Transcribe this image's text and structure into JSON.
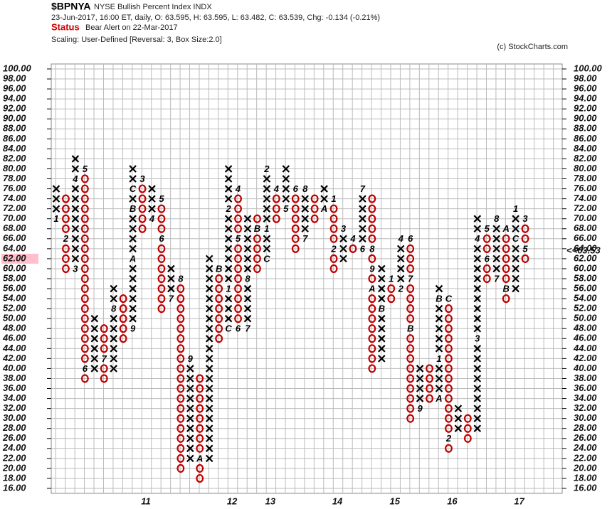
{
  "chart_data": {
    "type": "point_and_figure",
    "symbol": "$BPNYA",
    "name": "NYSE Bullish Percent Index  INDX",
    "quote": "23-Jun-2017, 16:00 ET, daily, O: 63.595, H: 63.595, L: 63.482, C: 63.539, Chg: -0.134 (-0.21%)",
    "status_label": "Status",
    "status": "Bear Alert on 22-Mar-2017",
    "scaling": "Scaling: User-Defined [Reversal: 3, Box Size:2.0]",
    "copyright": "(c) StockCharts.com",
    "box_size": 2,
    "x_color": "#000000",
    "o_color": "#c00000",
    "ylim": [
      16,
      100
    ],
    "yticks": [
      {
        "value": 100,
        "label": "100.00"
      },
      {
        "value": 98,
        "label": "98.00"
      },
      {
        "value": 96,
        "label": "96.00"
      },
      {
        "value": 94,
        "label": "94.00"
      },
      {
        "value": 92,
        "label": "92.00"
      },
      {
        "value": 90,
        "label": "90.00"
      },
      {
        "value": 88,
        "label": "88.00"
      },
      {
        "value": 86,
        "label": "86.00"
      },
      {
        "value": 84,
        "label": "84.00"
      },
      {
        "value": 82,
        "label": "82.00"
      },
      {
        "value": 80,
        "label": "80.00"
      },
      {
        "value": 78,
        "label": "78.00"
      },
      {
        "value": 76,
        "label": "76.00"
      },
      {
        "value": 74,
        "label": "74.00"
      },
      {
        "value": 72,
        "label": "72.00"
      },
      {
        "value": 70,
        "label": "70.00"
      },
      {
        "value": 68,
        "label": "68.00"
      },
      {
        "value": 66,
        "label": "66.00"
      },
      {
        "value": 64,
        "label": "64.00"
      },
      {
        "value": 62,
        "label": "62.00"
      },
      {
        "value": 60,
        "label": "60.00"
      },
      {
        "value": 58,
        "label": "58.00"
      },
      {
        "value": 56,
        "label": "56.00"
      },
      {
        "value": 54,
        "label": "54.00"
      },
      {
        "value": 52,
        "label": "52.00"
      },
      {
        "value": 50,
        "label": "50.00"
      },
      {
        "value": 48,
        "label": "48.00"
      },
      {
        "value": 46,
        "label": "46.00"
      },
      {
        "value": 44,
        "label": "44.00"
      },
      {
        "value": 42,
        "label": "42.00"
      },
      {
        "value": 40,
        "label": "40.00"
      },
      {
        "value": 38,
        "label": "38.00"
      },
      {
        "value": 36,
        "label": "36.00"
      },
      {
        "value": 34,
        "label": "34.00"
      },
      {
        "value": 32,
        "label": "32.00"
      },
      {
        "value": 30,
        "label": "30.00"
      },
      {
        "value": 28,
        "label": "28.00"
      },
      {
        "value": 26,
        "label": "26.00"
      },
      {
        "value": 24,
        "label": "24.00"
      },
      {
        "value": 22,
        "label": "22.00"
      },
      {
        "value": 20,
        "label": "20.00"
      },
      {
        "value": 18,
        "label": "18.00"
      },
      {
        "value": 16,
        "label": "16.00"
      }
    ],
    "highlight_tick": 62,
    "last_price": {
      "value": 63.53,
      "label": "<<63.53"
    },
    "grid": true,
    "columns": [
      {
        "type": "X",
        "from": 70,
        "to": 76,
        "months": [
          {
            "label": "1",
            "value": 70
          }
        ]
      },
      {
        "type": "O",
        "from": 60,
        "to": 74,
        "months": [
          {
            "label": "2",
            "value": 66
          }
        ]
      },
      {
        "type": "X",
        "from": 60,
        "to": 82,
        "months": [
          {
            "label": "3",
            "value": 60
          },
          {
            "label": "4",
            "value": 78
          }
        ]
      },
      {
        "type": "O",
        "from": 38,
        "to": 80,
        "months": [
          {
            "label": "5",
            "value": 80
          },
          {
            "label": "6",
            "value": 40
          }
        ]
      },
      {
        "type": "X",
        "from": 40,
        "to": 50,
        "months": []
      },
      {
        "type": "O",
        "from": 38,
        "to": 48,
        "months": [
          {
            "label": "7",
            "value": 42
          }
        ]
      },
      {
        "type": "X",
        "from": 40,
        "to": 56,
        "months": [
          {
            "label": "8",
            "value": 52
          }
        ]
      },
      {
        "type": "O",
        "from": 46,
        "to": 54,
        "months": []
      },
      {
        "type": "X",
        "from": 48,
        "to": 80,
        "months": [
          {
            "label": "9",
            "value": 48
          },
          {
            "label": "A",
            "value": 62
          },
          {
            "label": "B",
            "value": 72
          },
          {
            "label": "C",
            "value": 76
          }
        ]
      },
      {
        "type": "O",
        "from": 68,
        "to": 78,
        "months": [
          {
            "label": "3",
            "value": 78
          }
        ]
      },
      {
        "type": "X",
        "from": 70,
        "to": 76,
        "months": [
          {
            "label": "4",
            "value": 70
          }
        ]
      },
      {
        "type": "O",
        "from": 52,
        "to": 74,
        "months": [
          {
            "label": "5",
            "value": 74
          },
          {
            "label": "6",
            "value": 66
          }
        ]
      },
      {
        "type": "X",
        "from": 54,
        "to": 60,
        "months": [
          {
            "label": "7",
            "value": 54
          }
        ]
      },
      {
        "type": "O",
        "from": 20,
        "to": 58,
        "months": [
          {
            "label": "8",
            "value": 58
          }
        ]
      },
      {
        "type": "X",
        "from": 22,
        "to": 42,
        "months": [
          {
            "label": "9",
            "value": 42
          }
        ]
      },
      {
        "type": "O",
        "from": 18,
        "to": 38,
        "months": [
          {
            "label": "A",
            "value": 22
          }
        ]
      },
      {
        "type": "X",
        "from": 22,
        "to": 62,
        "months": []
      },
      {
        "type": "O",
        "from": 46,
        "to": 60,
        "months": [
          {
            "label": "B",
            "value": 60
          }
        ]
      },
      {
        "type": "X",
        "from": 48,
        "to": 80,
        "months": [
          {
            "label": "C",
            "value": 48
          },
          {
            "label": "1",
            "value": 56
          },
          {
            "label": "2",
            "value": 72
          }
        ]
      },
      {
        "type": "O",
        "from": 48,
        "to": 76,
        "months": [
          {
            "label": "4",
            "value": 76
          },
          {
            "label": "5",
            "value": 66
          },
          {
            "label": "6",
            "value": 48
          }
        ]
      },
      {
        "type": "X",
        "from": 48,
        "to": 70,
        "months": [
          {
            "label": "7",
            "value": 48
          },
          {
            "label": "8",
            "value": 58
          }
        ]
      },
      {
        "type": "O",
        "from": 60,
        "to": 70,
        "months": [
          {
            "label": "B",
            "value": 68
          }
        ]
      },
      {
        "type": "X",
        "from": 62,
        "to": 80,
        "months": [
          {
            "label": "C",
            "value": 62
          },
          {
            "label": "1",
            "value": 68
          },
          {
            "label": "2",
            "value": 80
          }
        ]
      },
      {
        "type": "O",
        "from": 70,
        "to": 76,
        "months": [
          {
            "label": "4",
            "value": 76
          }
        ]
      },
      {
        "type": "X",
        "from": 72,
        "to": 80,
        "months": [
          {
            "label": "5",
            "value": 72
          }
        ]
      },
      {
        "type": "O",
        "from": 64,
        "to": 76,
        "months": [
          {
            "label": "6",
            "value": 76
          }
        ]
      },
      {
        "type": "X",
        "from": 66,
        "to": 76,
        "months": [
          {
            "label": "7",
            "value": 66
          },
          {
            "label": "8",
            "value": 76
          }
        ]
      },
      {
        "type": "O",
        "from": 70,
        "to": 74,
        "months": []
      },
      {
        "type": "X",
        "from": 72,
        "to": 76,
        "months": [
          {
            "label": "A",
            "value": 72
          }
        ]
      },
      {
        "type": "O",
        "from": 60,
        "to": 74,
        "months": [
          {
            "label": "1",
            "value": 74
          },
          {
            "label": "2",
            "value": 64
          }
        ]
      },
      {
        "type": "X",
        "from": 62,
        "to": 68,
        "months": [
          {
            "label": "3",
            "value": 68
          }
        ]
      },
      {
        "type": "O",
        "from": 64,
        "to": 66,
        "months": [
          {
            "label": "4",
            "value": 66
          }
        ]
      },
      {
        "type": "X",
        "from": 64,
        "to": 76,
        "months": [
          {
            "label": "6",
            "value": 64
          },
          {
            "label": "7",
            "value": 76
          }
        ]
      },
      {
        "type": "O",
        "from": 40,
        "to": 74,
        "months": [
          {
            "label": "8",
            "value": 64
          },
          {
            "label": "9",
            "value": 60
          },
          {
            "label": "A",
            "value": 56
          }
        ]
      },
      {
        "type": "X",
        "from": 42,
        "to": 60,
        "months": [
          {
            "label": "B",
            "value": 52
          }
        ]
      },
      {
        "type": "O",
        "from": 54,
        "to": 58,
        "months": [
          {
            "label": "1",
            "value": 58
          }
        ]
      },
      {
        "type": "X",
        "from": 56,
        "to": 66,
        "months": [
          {
            "label": "2",
            "value": 56
          },
          {
            "label": "4",
            "value": 66
          }
        ]
      },
      {
        "type": "O",
        "from": 30,
        "to": 66,
        "months": [
          {
            "label": "6",
            "value": 66
          },
          {
            "label": "7",
            "value": 58
          },
          {
            "label": "B",
            "value": 48
          }
        ]
      },
      {
        "type": "X",
        "from": 32,
        "to": 40,
        "months": [
          {
            "label": "9",
            "value": 32
          }
        ]
      },
      {
        "type": "O",
        "from": 34,
        "to": 40,
        "months": []
      },
      {
        "type": "X",
        "from": 34,
        "to": 56,
        "months": [
          {
            "label": "A",
            "value": 34
          },
          {
            "label": "1",
            "value": 42
          },
          {
            "label": "B",
            "value": 54
          }
        ]
      },
      {
        "type": "O",
        "from": 24,
        "to": 54,
        "months": [
          {
            "label": "C",
            "value": 54
          },
          {
            "label": "2",
            "value": 26
          }
        ]
      },
      {
        "type": "X",
        "from": 28,
        "to": 32,
        "months": []
      },
      {
        "type": "O",
        "from": 26,
        "to": 30,
        "months": []
      },
      {
        "type": "X",
        "from": 28,
        "to": 70,
        "months": [
          {
            "label": "3",
            "value": 46
          },
          {
            "label": "4",
            "value": 66
          }
        ]
      },
      {
        "type": "O",
        "from": 58,
        "to": 68,
        "months": [
          {
            "label": "5",
            "value": 68
          },
          {
            "label": "6",
            "value": 62
          }
        ]
      },
      {
        "type": "X",
        "from": 58,
        "to": 70,
        "months": [
          {
            "label": "7",
            "value": 58
          },
          {
            "label": "8",
            "value": 70
          }
        ]
      },
      {
        "type": "O",
        "from": 54,
        "to": 68,
        "months": [
          {
            "label": "A",
            "value": 68
          },
          {
            "label": "B",
            "value": 56
          }
        ]
      },
      {
        "type": "X",
        "from": 56,
        "to": 72,
        "months": [
          {
            "label": "C",
            "value": 66
          },
          {
            "label": "1",
            "value": 72
          }
        ]
      },
      {
        "type": "O",
        "from": 62,
        "to": 70,
        "months": [
          {
            "label": "3",
            "value": 70
          },
          {
            "label": "5",
            "value": 64
          }
        ]
      }
    ],
    "years": [
      {
        "label": "11",
        "column": 9
      },
      {
        "label": "12",
        "column": 18
      },
      {
        "label": "13",
        "column": 22
      },
      {
        "label": "14",
        "column": 29
      },
      {
        "label": "15",
        "column": 35
      },
      {
        "label": "16",
        "column": 41
      },
      {
        "label": "17",
        "column": 48
      }
    ]
  }
}
